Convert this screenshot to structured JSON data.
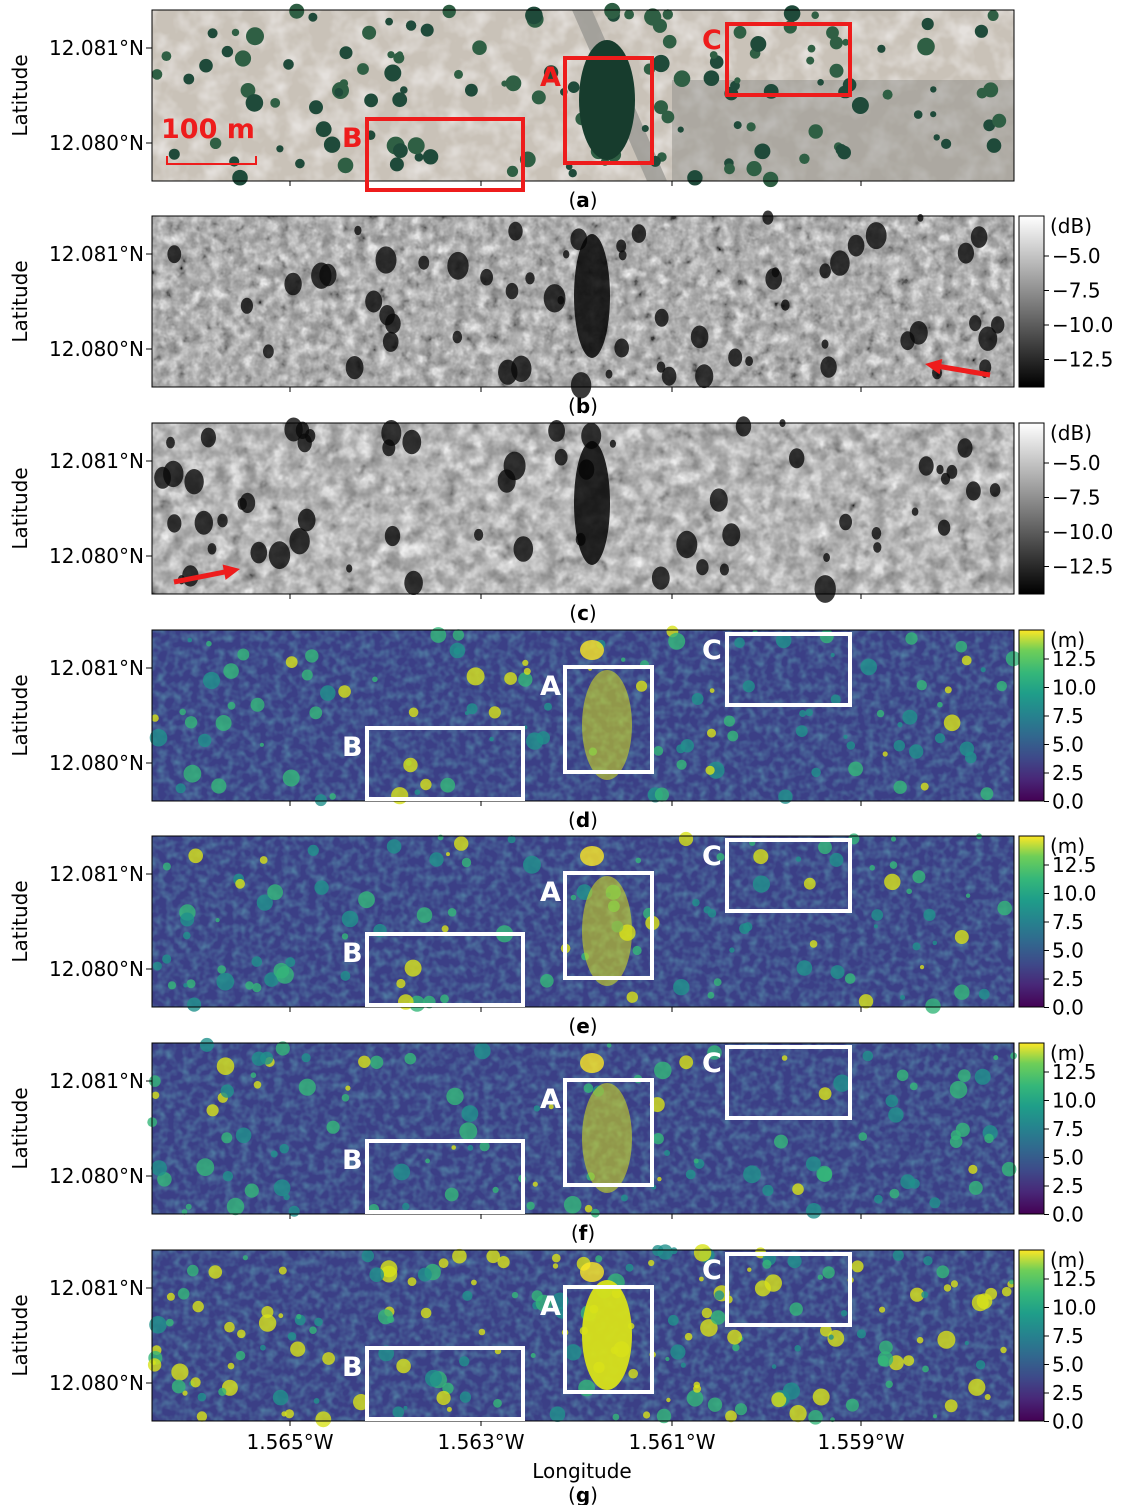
{
  "figure": {
    "x_axis_label": "Longitude",
    "y_axis_label": "Latitude",
    "scale_bar_label": "100 m",
    "x_ticks": [
      "1.565°W",
      "1.563°W",
      "1.561°W",
      "1.559°W"
    ],
    "y_ticks": [
      "12.081°N",
      "12.080°N"
    ]
  },
  "chart_data": [
    {
      "id": "a",
      "type": "image",
      "caption": "(a)",
      "content": "optical satellite image",
      "x_ticks": [],
      "y_ticks": [
        "12.081°N",
        "12.080°N"
      ],
      "ylabel": "Latitude",
      "boxes": [
        {
          "label": "A",
          "color": "#ee1c1c"
        },
        {
          "label": "B",
          "color": "#ee1c1c"
        },
        {
          "label": "C",
          "color": "#ee1c1c"
        }
      ],
      "scale_bar": "100 m"
    },
    {
      "id": "b",
      "type": "heatmap",
      "caption": "(b)",
      "colormap": "gray",
      "colorbar_unit": "(dB)",
      "colorbar_ticks": [
        "−5.0",
        "−7.5",
        "−10.0",
        "−12.5"
      ],
      "ylabel": "Latitude",
      "y_ticks": [
        "12.081°N",
        "12.080°N"
      ],
      "arrow": "bottom-right, pointing left"
    },
    {
      "id": "c",
      "type": "heatmap",
      "caption": "(c)",
      "colormap": "gray",
      "colorbar_unit": "(dB)",
      "colorbar_ticks": [
        "−5.0",
        "−7.5",
        "−10.0",
        "−12.5"
      ],
      "ylabel": "Latitude",
      "y_ticks": [
        "12.081°N",
        "12.080°N"
      ],
      "arrow": "bottom-left, pointing right"
    },
    {
      "id": "d",
      "type": "heatmap",
      "caption": "(d)",
      "colormap": "viridis",
      "colorbar_unit": "(m)",
      "colorbar_ticks": [
        "12.5",
        "10.0",
        "7.5",
        "5.0",
        "2.5",
        "0.0"
      ],
      "ylabel": "Latitude",
      "y_ticks": [
        "12.081°N",
        "12.080°N"
      ],
      "boxes": [
        {
          "label": "A",
          "color": "#ffffff"
        },
        {
          "label": "B",
          "color": "#ffffff"
        },
        {
          "label": "C",
          "color": "#ffffff"
        }
      ]
    },
    {
      "id": "e",
      "type": "heatmap",
      "caption": "(e)",
      "colormap": "viridis",
      "colorbar_unit": "(m)",
      "colorbar_ticks": [
        "12.5",
        "10.0",
        "7.5",
        "5.0",
        "2.5",
        "0.0"
      ],
      "ylabel": "Latitude",
      "y_ticks": [
        "12.081°N",
        "12.080°N"
      ],
      "boxes": [
        {
          "label": "A",
          "color": "#ffffff"
        },
        {
          "label": "B",
          "color": "#ffffff"
        },
        {
          "label": "C",
          "color": "#ffffff"
        }
      ]
    },
    {
      "id": "f",
      "type": "heatmap",
      "caption": "(f)",
      "colormap": "viridis",
      "colorbar_unit": "(m)",
      "colorbar_ticks": [
        "12.5",
        "10.0",
        "7.5",
        "5.0",
        "2.5",
        "0.0"
      ],
      "ylabel": "Latitude",
      "y_ticks": [
        "12.081°N",
        "12.080°N"
      ],
      "boxes": [
        {
          "label": "A",
          "color": "#ffffff"
        },
        {
          "label": "B",
          "color": "#ffffff"
        },
        {
          "label": "C",
          "color": "#ffffff"
        }
      ]
    },
    {
      "id": "g",
      "type": "heatmap",
      "caption": "(g)",
      "colormap": "viridis",
      "colorbar_unit": "(m)",
      "colorbar_ticks": [
        "12.5",
        "10.0",
        "7.5",
        "5.0",
        "2.5",
        "0.0"
      ],
      "ylabel": "Latitude",
      "xlabel": "Longitude",
      "y_ticks": [
        "12.081°N",
        "12.080°N"
      ],
      "x_ticks": [
        "1.565°W",
        "1.563°W",
        "1.561°W",
        "1.559°W"
      ],
      "boxes": [
        {
          "label": "A",
          "color": "#ffffff"
        },
        {
          "label": "B",
          "color": "#ffffff"
        },
        {
          "label": "C",
          "color": "#ffffff"
        }
      ]
    }
  ]
}
